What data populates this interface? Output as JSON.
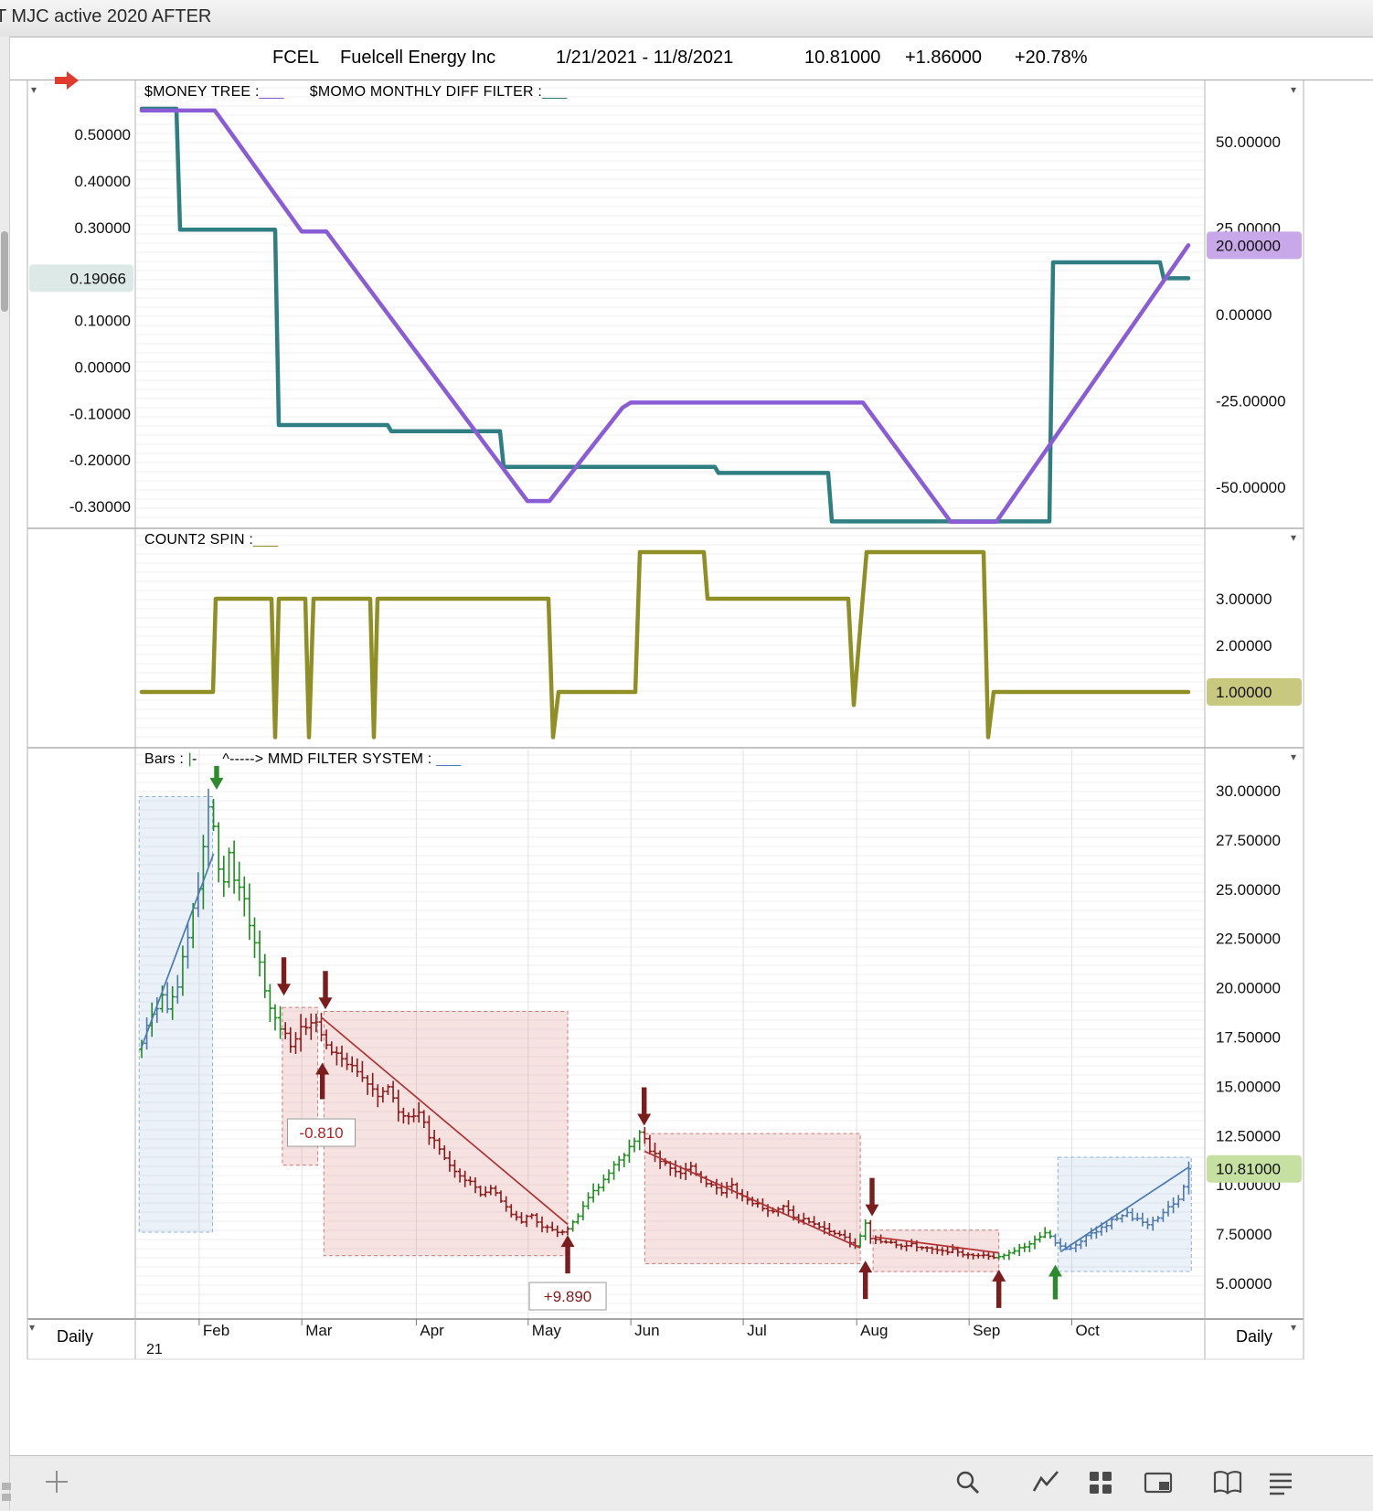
{
  "window": {
    "title": "T MJC active 2020 AFTER"
  },
  "header": {
    "arrow_icon": "red-right-arrow",
    "symbol": "FCEL",
    "company": "Fuelcell Energy Inc",
    "date_range": "1/21/2021 - 11/8/2021",
    "last": "10.81000",
    "change": "+1.86000",
    "percent": "+20.78%"
  },
  "footer": {
    "interval_left": "Daily",
    "interval_right": "Daily"
  },
  "toolbar": {
    "icons": [
      "plus-icon",
      "zoom-icon",
      "chart-line-icon",
      "grid-icon",
      "panel-icon",
      "book-icon",
      "menu-icon"
    ]
  },
  "chart_data": [
    {
      "type": "line",
      "panel": "indicator-top",
      "title_segments": [
        {
          "text": "$MONEY TREE :",
          "color": "#000000"
        },
        {
          "text": "___",
          "color": "#8a5cd6"
        },
        {
          "text": "      $MOMO MONTHLY DIFF FILTER :",
          "color": "#000000"
        },
        {
          "text": "___",
          "color": "#2f7f82"
        }
      ],
      "left_axis": {
        "ticks": [
          0.5,
          0.4,
          0.3,
          0.1,
          0,
          -0.1,
          -0.2,
          -0.3
        ],
        "decimals": 5,
        "range": [
          -0.347,
          0.616
        ],
        "badge": {
          "value": 0.19066,
          "label": "0.19066",
          "bg": "#dce9e7"
        }
      },
      "right_axis": {
        "ticks": [
          50,
          25,
          0,
          -25,
          -50
        ],
        "decimals": 5,
        "range": [
          -61.9,
          67.7
        ],
        "badge": {
          "value": 20,
          "label": "20.00000",
          "bg": "#c8a8e8"
        }
      },
      "series": [
        {
          "name": "momo-monthly-diff-filter",
          "axis": "left",
          "color": "#2f7f82",
          "width": 4.5,
          "points": [
            [
              155,
              0.555
            ],
            [
              193,
              0.555
            ],
            [
              197,
              0.295
            ],
            [
              301,
              0.295
            ],
            [
              305,
              -0.125
            ],
            [
              424,
              -0.125
            ],
            [
              428,
              -0.138
            ],
            [
              547,
              -0.138
            ],
            [
              551,
              -0.215
            ],
            [
              782,
              -0.215
            ],
            [
              786,
              -0.228
            ],
            [
              906,
              -0.228
            ],
            [
              910,
              -0.332
            ],
            [
              1148,
              -0.332
            ],
            [
              1152,
              0.225
            ],
            [
              1269,
              0.225
            ],
            [
              1273,
              0.19066
            ],
            [
              1300,
              0.19066
            ]
          ]
        },
        {
          "name": "money-tree",
          "axis": "right",
          "color": "#8a5cd6",
          "width": 4.5,
          "points": [
            [
              155,
              59
            ],
            [
              235,
              59
            ],
            [
              330,
              24
            ],
            [
              357,
              24
            ],
            [
              577,
              -54
            ],
            [
              601,
              -54
            ],
            [
              681,
              -27
            ],
            [
              690,
              -25.5
            ],
            [
              944,
              -25.5
            ],
            [
              1040,
              -60
            ],
            [
              1090,
              -60
            ],
            [
              1300,
              20
            ]
          ]
        }
      ]
    },
    {
      "type": "line",
      "panel": "indicator-middle",
      "title_segments": [
        {
          "text": "COUNT2 SPIN :",
          "color": "#000000"
        },
        {
          "text": "___",
          "color": "#8f8f25"
        }
      ],
      "right_axis": {
        "ticks": [
          3,
          2,
          1
        ],
        "decimals": 5,
        "range": [
          -0.196,
          4.51
        ],
        "badge": {
          "value": 1,
          "label": "1.00000",
          "bg": "#c8c87e"
        }
      },
      "series": [
        {
          "name": "count2-spin",
          "axis": "right",
          "color": "#8f8f25",
          "width": 4.5,
          "points": [
            [
              155,
              1
            ],
            [
              233,
              1
            ],
            [
              236,
              3
            ],
            [
              297,
              3
            ],
            [
              301,
              0.03
            ],
            [
              305,
              3
            ],
            [
              334,
              3
            ],
            [
              338,
              0.03
            ],
            [
              343,
              3
            ],
            [
              405,
              3
            ],
            [
              409,
              0.03
            ],
            [
              413,
              3
            ],
            [
              600,
              3
            ],
            [
              605,
              0.03
            ],
            [
              611,
              1
            ],
            [
              695,
              1
            ],
            [
              700,
              4
            ],
            [
              770,
              4
            ],
            [
              774,
              3
            ],
            [
              928,
              3
            ],
            [
              934,
              0.72
            ],
            [
              948,
              4
            ],
            [
              1076,
              4
            ],
            [
              1081,
              0.03
            ],
            [
              1087,
              1
            ],
            [
              1300,
              1
            ]
          ]
        }
      ]
    },
    {
      "type": "ohlc",
      "panel": "price",
      "title_segments": [
        {
          "text": "Bars : ",
          "color": "#000000"
        },
        {
          "text": "|",
          "color": "#2d8a2d"
        },
        {
          "text": "-      ^-----> MMD FILTER SYSTEM : ",
          "color": "#000000"
        },
        {
          "text": "___",
          "color": "#4a7ab8"
        }
      ],
      "right_axis": {
        "ticks": [
          30,
          27.5,
          25,
          22.5,
          20,
          17.5,
          15,
          12.5,
          10,
          7.5,
          5
        ],
        "decimals": 5,
        "range": [
          3.19,
          32.18
        ],
        "badge": {
          "value": 10.81,
          "label": "10.81000",
          "bg": "#c6e0a2"
        }
      },
      "x_axis": {
        "months": [
          {
            "label": "Feb",
            "i": 11.2
          },
          {
            "label": "Mar",
            "i": 31.2
          },
          {
            "label": "Apr",
            "i": 53.5
          },
          {
            "label": "May",
            "i": 75.3
          },
          {
            "label": "Jun",
            "i": 95.3
          },
          {
            "label": "Jul",
            "i": 117.2
          },
          {
            "label": "Aug",
            "i": 139.3
          },
          {
            "label": "Sep",
            "i": 161.2
          },
          {
            "label": "Oct",
            "i": 181.2
          }
        ],
        "year_label": "21"
      },
      "bars": {
        "count": 205,
        "anchors": [
          [
            0,
            17.3
          ],
          [
            2,
            18.6
          ],
          [
            4,
            19.4
          ],
          [
            5,
            18.7
          ],
          [
            7,
            20.2
          ],
          [
            9,
            22.5
          ],
          [
            11,
            25.2
          ],
          [
            13,
            29.3
          ],
          [
            14,
            28.2
          ],
          [
            15,
            26.2
          ],
          [
            16,
            25.5
          ],
          [
            17,
            26.8
          ],
          [
            18,
            25.6
          ],
          [
            20,
            24.3
          ],
          [
            22,
            22.3
          ],
          [
            24,
            19.8
          ],
          [
            26,
            18.4
          ],
          [
            28,
            17.6
          ],
          [
            29,
            17.2
          ],
          [
            31,
            17.9
          ],
          [
            33,
            18.4
          ],
          [
            35,
            17.7
          ],
          [
            37,
            16.8
          ],
          [
            40,
            16.2
          ],
          [
            43,
            15.3
          ],
          [
            46,
            14.6
          ],
          [
            48,
            14.9
          ],
          [
            50,
            13.8
          ],
          [
            52,
            13.4
          ],
          [
            54,
            13.6
          ],
          [
            56,
            12.5
          ],
          [
            58,
            11.9
          ],
          [
            60,
            10.9
          ],
          [
            62,
            10.4
          ],
          [
            64,
            10.1
          ],
          [
            66,
            9.5
          ],
          [
            68,
            9.9
          ],
          [
            70,
            9.2
          ],
          [
            72,
            8.6
          ],
          [
            74,
            8.2
          ],
          [
            76,
            8.4
          ],
          [
            78,
            7.9
          ],
          [
            80,
            7.7
          ],
          [
            82,
            7.6
          ],
          [
            84,
            8.1
          ],
          [
            86,
            8.9
          ],
          [
            88,
            9.6
          ],
          [
            90,
            10.2
          ],
          [
            92,
            10.9
          ],
          [
            94,
            11.6
          ],
          [
            96,
            12.2
          ],
          [
            97,
            12.6
          ],
          [
            99,
            11.8
          ],
          [
            101,
            11.2
          ],
          [
            103,
            10.9
          ],
          [
            105,
            10.6
          ],
          [
            107,
            10.9
          ],
          [
            109,
            10.3
          ],
          [
            111,
            10.0
          ],
          [
            113,
            9.7
          ],
          [
            115,
            9.9
          ],
          [
            117,
            9.4
          ],
          [
            119,
            9.1
          ],
          [
            121,
            8.8
          ],
          [
            123,
            8.6
          ],
          [
            125,
            8.9
          ],
          [
            127,
            8.4
          ],
          [
            129,
            8.2
          ],
          [
            131,
            8.0
          ],
          [
            133,
            7.8
          ],
          [
            135,
            7.6
          ],
          [
            137,
            7.3
          ],
          [
            139,
            6.9
          ],
          [
            140,
            7.4
          ],
          [
            141,
            8.0
          ],
          [
            142,
            7.3
          ],
          [
            144,
            7.1
          ],
          [
            146,
            7.0
          ],
          [
            148,
            6.9
          ],
          [
            150,
            7.0
          ],
          [
            152,
            6.8
          ],
          [
            154,
            6.7
          ],
          [
            156,
            6.6
          ],
          [
            158,
            6.7
          ],
          [
            160,
            6.5
          ],
          [
            162,
            6.4
          ],
          [
            164,
            6.4
          ],
          [
            166,
            6.3
          ],
          [
            168,
            6.4
          ],
          [
            170,
            6.6
          ],
          [
            172,
            6.9
          ],
          [
            174,
            7.2
          ],
          [
            176,
            7.5
          ],
          [
            177,
            7.3
          ],
          [
            179,
            6.9
          ],
          [
            180,
            6.7
          ],
          [
            182,
            7.0
          ],
          [
            184,
            7.4
          ],
          [
            186,
            7.7
          ],
          [
            188,
            8.0
          ],
          [
            190,
            8.3
          ],
          [
            192,
            8.5
          ],
          [
            194,
            8.2
          ],
          [
            196,
            7.9
          ],
          [
            197,
            8.1
          ],
          [
            199,
            8.6
          ],
          [
            201,
            9.0
          ],
          [
            202,
            9.3
          ],
          [
            203,
            9.9
          ],
          [
            204,
            10.81
          ]
        ],
        "segments": [
          [
            0,
            13,
            "mixed"
          ],
          [
            14,
            27,
            "green"
          ],
          [
            28,
            83,
            "red"
          ],
          [
            84,
            97,
            "green"
          ],
          [
            98,
            139,
            "red"
          ],
          [
            140,
            141,
            "green"
          ],
          [
            142,
            166,
            "red"
          ],
          [
            167,
            177,
            "green"
          ],
          [
            178,
            204,
            "blue"
          ]
        ],
        "colors": {
          "green": "#1f8c1f",
          "red": "#8b1a1a",
          "blue": "#4f79ad"
        }
      },
      "trendlines": [
        {
          "color": "#4a7ab8",
          "points": [
            [
              0,
              17.0
            ],
            [
              14,
              26.8
            ]
          ]
        },
        {
          "color": "#b23333",
          "points": [
            [
              35,
              18.5
            ],
            [
              83,
              8.0
            ]
          ]
        },
        {
          "color": "#b23333",
          "points": [
            [
              98,
              11.7
            ],
            [
              140,
              6.8
            ]
          ]
        },
        {
          "color": "#b23333",
          "points": [
            [
              143,
              7.35
            ],
            [
              167,
              6.55
            ]
          ]
        },
        {
          "color": "#4a7ab8",
          "points": [
            [
              179,
              6.6
            ],
            [
              204,
              10.9
            ]
          ]
        }
      ],
      "boxes": [
        {
          "style": "blue",
          "i1": -0.5,
          "i2": 13.8,
          "v1": 7.6,
          "v2": 29.7
        },
        {
          "style": "pink",
          "i1": 27.4,
          "i2": 34.3,
          "v1": 11.0,
          "v2": 19.0
        },
        {
          "style": "pink",
          "i1": 35.5,
          "i2": 83.0,
          "v1": 6.4,
          "v2": 18.8
        },
        {
          "style": "pink",
          "i1": 98.0,
          "i2": 140.0,
          "v1": 6.0,
          "v2": 12.6
        },
        {
          "style": "pink",
          "i1": 142.5,
          "i2": 167.0,
          "v1": 5.6,
          "v2": 7.7
        },
        {
          "style": "blue",
          "i1": 178.5,
          "i2": 204.5,
          "v1": 5.6,
          "v2": 11.4
        }
      ],
      "arrows": [
        {
          "i": 14.6,
          "v": 30.05,
          "dir": "down",
          "color": "green",
          "len": 26
        },
        {
          "i": 27.7,
          "v": 19.6,
          "dir": "down",
          "color": "maroon",
          "len": 42
        },
        {
          "i": 35.8,
          "v": 18.9,
          "dir": "down",
          "color": "maroon",
          "len": 42
        },
        {
          "i": 35.2,
          "v": 16.2,
          "dir": "up",
          "color": "maroon",
          "len": 40
        },
        {
          "i": 83.0,
          "v": 7.45,
          "dir": "up",
          "color": "maroon",
          "len": 42
        },
        {
          "i": 97.9,
          "v": 13.0,
          "dir": "down",
          "color": "maroon",
          "len": 42
        },
        {
          "i": 142.3,
          "v": 8.4,
          "dir": "down",
          "color": "maroon",
          "len": 42
        },
        {
          "i": 141.0,
          "v": 6.15,
          "dir": "up",
          "color": "maroon",
          "len": 42
        },
        {
          "i": 167.0,
          "v": 5.7,
          "dir": "up",
          "color": "maroon",
          "len": 42
        },
        {
          "i": 178.0,
          "v": 5.95,
          "dir": "up",
          "color": "green",
          "len": 38
        }
      ],
      "annotations": [
        {
          "text": "-0.810",
          "i": 35.0,
          "v": 12.65,
          "color": "#b22222",
          "w": 74
        },
        {
          "text": "+9.890",
          "i": 83.0,
          "v": 4.35,
          "color": "#8b1a1a",
          "w": 84
        }
      ]
    }
  ]
}
